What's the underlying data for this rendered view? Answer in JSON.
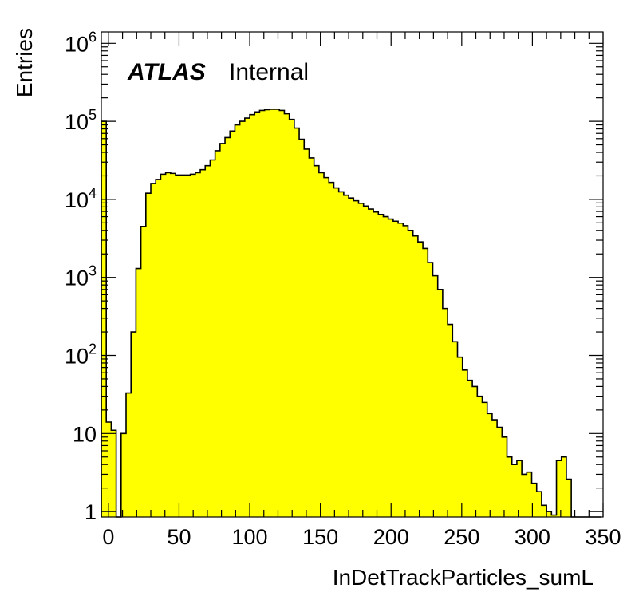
{
  "chart_data": {
    "type": "bar",
    "title": "",
    "xlabel": "InDetTrackParticles_sumL",
    "ylabel": "Entries",
    "x_scale": "linear",
    "y_scale": "log",
    "xlim": [
      -5,
      350
    ],
    "ylim": [
      0.85,
      1400000
    ],
    "grid": false,
    "legend": "none",
    "label": {
      "experiment": "ATLAS",
      "status": "Internal"
    },
    "fill_color": "#ffff00",
    "line_color": "#000000",
    "x_ticks": [
      {
        "v": 0,
        "label": "0"
      },
      {
        "v": 50,
        "label": "50"
      },
      {
        "v": 100,
        "label": "100"
      },
      {
        "v": 150,
        "label": "150"
      },
      {
        "v": 200,
        "label": "200"
      },
      {
        "v": 250,
        "label": "250"
      },
      {
        "v": 300,
        "label": "300"
      },
      {
        "v": 350,
        "label": "350"
      }
    ],
    "y_ticks": [
      {
        "v": 1,
        "base": "1",
        "exp": ""
      },
      {
        "v": 10,
        "base": "10",
        "exp": ""
      },
      {
        "v": 100,
        "base": "10",
        "exp": "2"
      },
      {
        "v": 1000,
        "base": "10",
        "exp": "3"
      },
      {
        "v": 10000,
        "base": "10",
        "exp": "4"
      },
      {
        "v": 100000,
        "base": "10",
        "exp": "5"
      },
      {
        "v": 1000000,
        "base": "10",
        "exp": "6"
      }
    ],
    "bin_width": 3.5,
    "bins_start": -5,
    "values": [
      100000,
      14,
      11,
      0,
      10,
      33,
      200,
      1300,
      4500,
      12000,
      16000,
      18000,
      21000,
      22000,
      21500,
      20500,
      20500,
      20500,
      21000,
      22000,
      24000,
      27000,
      32000,
      42000,
      52000,
      62000,
      75000,
      90000,
      100000,
      110000,
      122000,
      132000,
      138000,
      141000,
      143000,
      143000,
      138000,
      125000,
      106000,
      82000,
      59000,
      44000,
      34000,
      27000,
      22000,
      19000,
      16500,
      14000,
      12500,
      11300,
      10400,
      9600,
      8900,
      8200,
      7500,
      6900,
      6400,
      6000,
      5600,
      5250,
      4950,
      4600,
      4000,
      3400,
      2850,
      2350,
      1550,
      1050,
      700,
      400,
      250,
      150,
      95,
      65,
      48,
      40,
      30,
      25,
      18,
      15,
      12,
      9,
      5,
      4,
      4.5,
      3,
      3.2,
      2.3,
      1.8,
      1.2,
      1.0,
      0.9,
      4.5,
      5,
      2.6,
      0,
      0,
      0,
      0,
      0,
      0
    ]
  }
}
